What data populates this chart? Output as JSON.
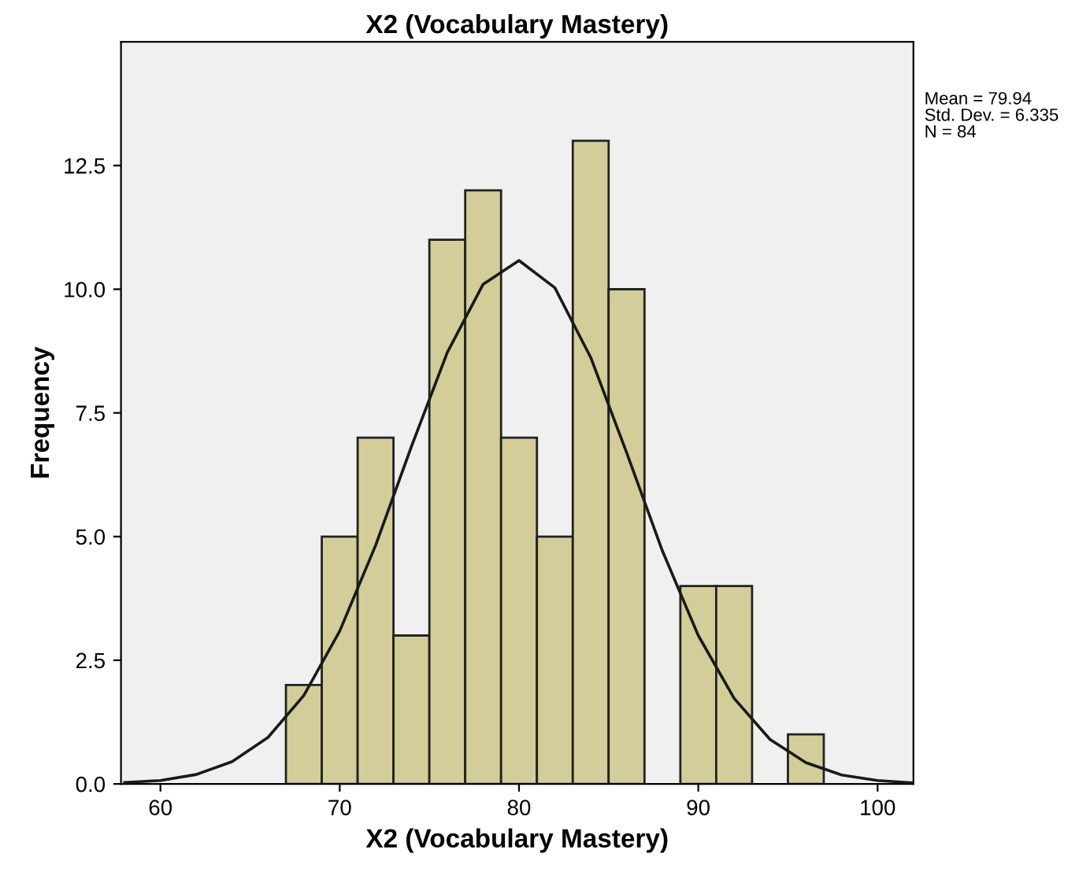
{
  "chart_data": {
    "type": "histogram",
    "title": "X2 (Vocabulary Mastery)",
    "xlabel": "X2 (Vocabulary Mastery)",
    "ylabel": "Frequency",
    "bins": [
      67,
      69,
      71,
      73,
      75,
      77,
      79,
      81,
      83,
      85,
      87,
      89,
      91,
      93,
      95,
      97
    ],
    "series": [
      {
        "color": "#d3ce99",
        "values": [
          2,
          5,
          7,
          3,
          11,
          12,
          7,
          5,
          13,
          10,
          0,
          4,
          4,
          0,
          1
        ]
      },
      {
        "type": "line",
        "color": "#1a1a1a",
        "x": [
          58,
          60,
          62,
          64,
          66,
          68,
          70,
          72,
          74,
          76,
          78,
          80,
          82,
          84,
          86,
          88,
          90,
          92,
          94,
          96,
          98,
          100,
          102
        ],
        "values": [
          0.03,
          0.07,
          0.19,
          0.45,
          0.94,
          1.79,
          3.09,
          4.82,
          6.82,
          8.72,
          10.1,
          10.58,
          10.03,
          8.62,
          6.7,
          4.71,
          3.0,
          1.73,
          0.9,
          0.43,
          0.18,
          0.07,
          0.02
        ]
      }
    ],
    "xlim": [
      57.8,
      102
    ],
    "ylim": [
      0,
      15
    ],
    "xticks": [
      60,
      70,
      80,
      90,
      100
    ],
    "yticks": [
      {
        "value": 0,
        "label": "0.0"
      },
      {
        "value": 2.5,
        "label": "2.5"
      },
      {
        "value": 5,
        "label": "5.0"
      },
      {
        "value": 7.5,
        "label": "7.5"
      },
      {
        "value": 10,
        "label": "10.0"
      },
      {
        "value": 12.5,
        "label": "12.5"
      }
    ],
    "annotations": [
      "Mean = 79.94",
      "Std. Dev. = 6.335",
      "N = 84"
    ],
    "grid": false,
    "legend": false
  }
}
